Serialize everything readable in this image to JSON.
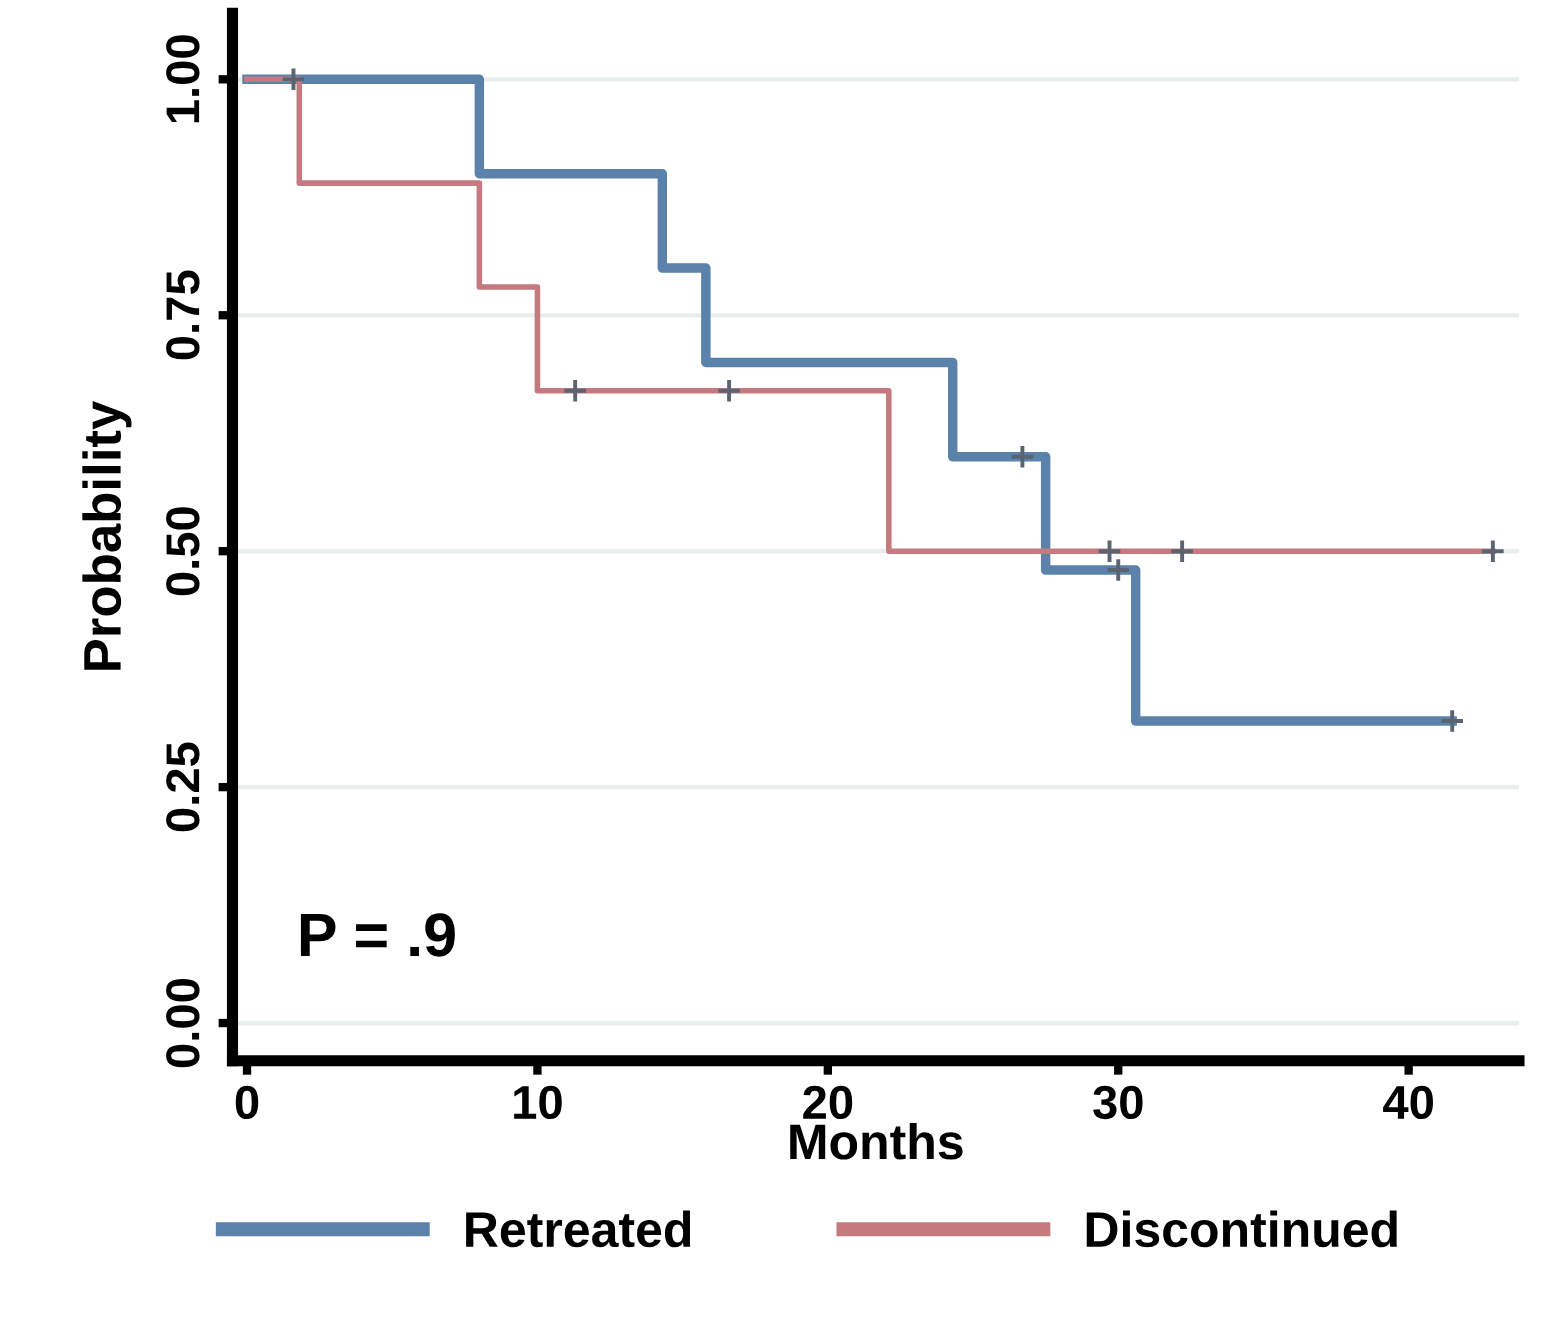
{
  "chart_data": {
    "type": "step",
    "xlabel": "Months",
    "ylabel": "Probability",
    "annotations": [
      "P = .9"
    ],
    "series": [
      {
        "name": "Retreated",
        "color": "#5a82ab",
        "x": [
          0,
          8,
          14.3,
          15.8,
          24.3,
          27.5,
          30.6,
          41.5
        ],
        "values": [
          1,
          0.9,
          0.8,
          0.7,
          0.6,
          0.48,
          0.32,
          0.32
        ]
      },
      {
        "name": "Discontinued",
        "color": "#c47a7e",
        "x": [
          0,
          1.8,
          8,
          10,
          22.1,
          42.9
        ],
        "values": [
          1,
          0.89,
          0.78,
          0.67,
          0.5,
          0.5
        ]
      },
      {
        "type": "scatter",
        "marker": "cross",
        "color": "#5a6470",
        "x": [
          1.6,
          26.7,
          30.0,
          41.5
        ],
        "values": [
          1,
          0.6,
          0.48,
          0.32
        ]
      },
      {
        "type": "scatter",
        "marker": "cross",
        "color": "#5a6470",
        "x": [
          11.3,
          16.6,
          29.7,
          32.2,
          42.9
        ],
        "values": [
          0.67,
          0.67,
          0.5,
          0.5,
          0.5
        ]
      }
    ],
    "xlim": [
      -0.5,
      43.8
    ],
    "xticks": [
      0,
      10,
      20,
      30,
      40
    ],
    "ylim": [
      -0.04,
      1.07
    ],
    "yticks": [
      {
        "value": 0,
        "label": "0.00"
      },
      {
        "value": 0.25,
        "label": "0.25"
      },
      {
        "value": 0.5,
        "label": "0.50"
      },
      {
        "value": 0.75,
        "label": "0.75"
      },
      {
        "value": 1,
        "label": "1.00"
      }
    ],
    "grid": "y",
    "legend": "bottom"
  }
}
